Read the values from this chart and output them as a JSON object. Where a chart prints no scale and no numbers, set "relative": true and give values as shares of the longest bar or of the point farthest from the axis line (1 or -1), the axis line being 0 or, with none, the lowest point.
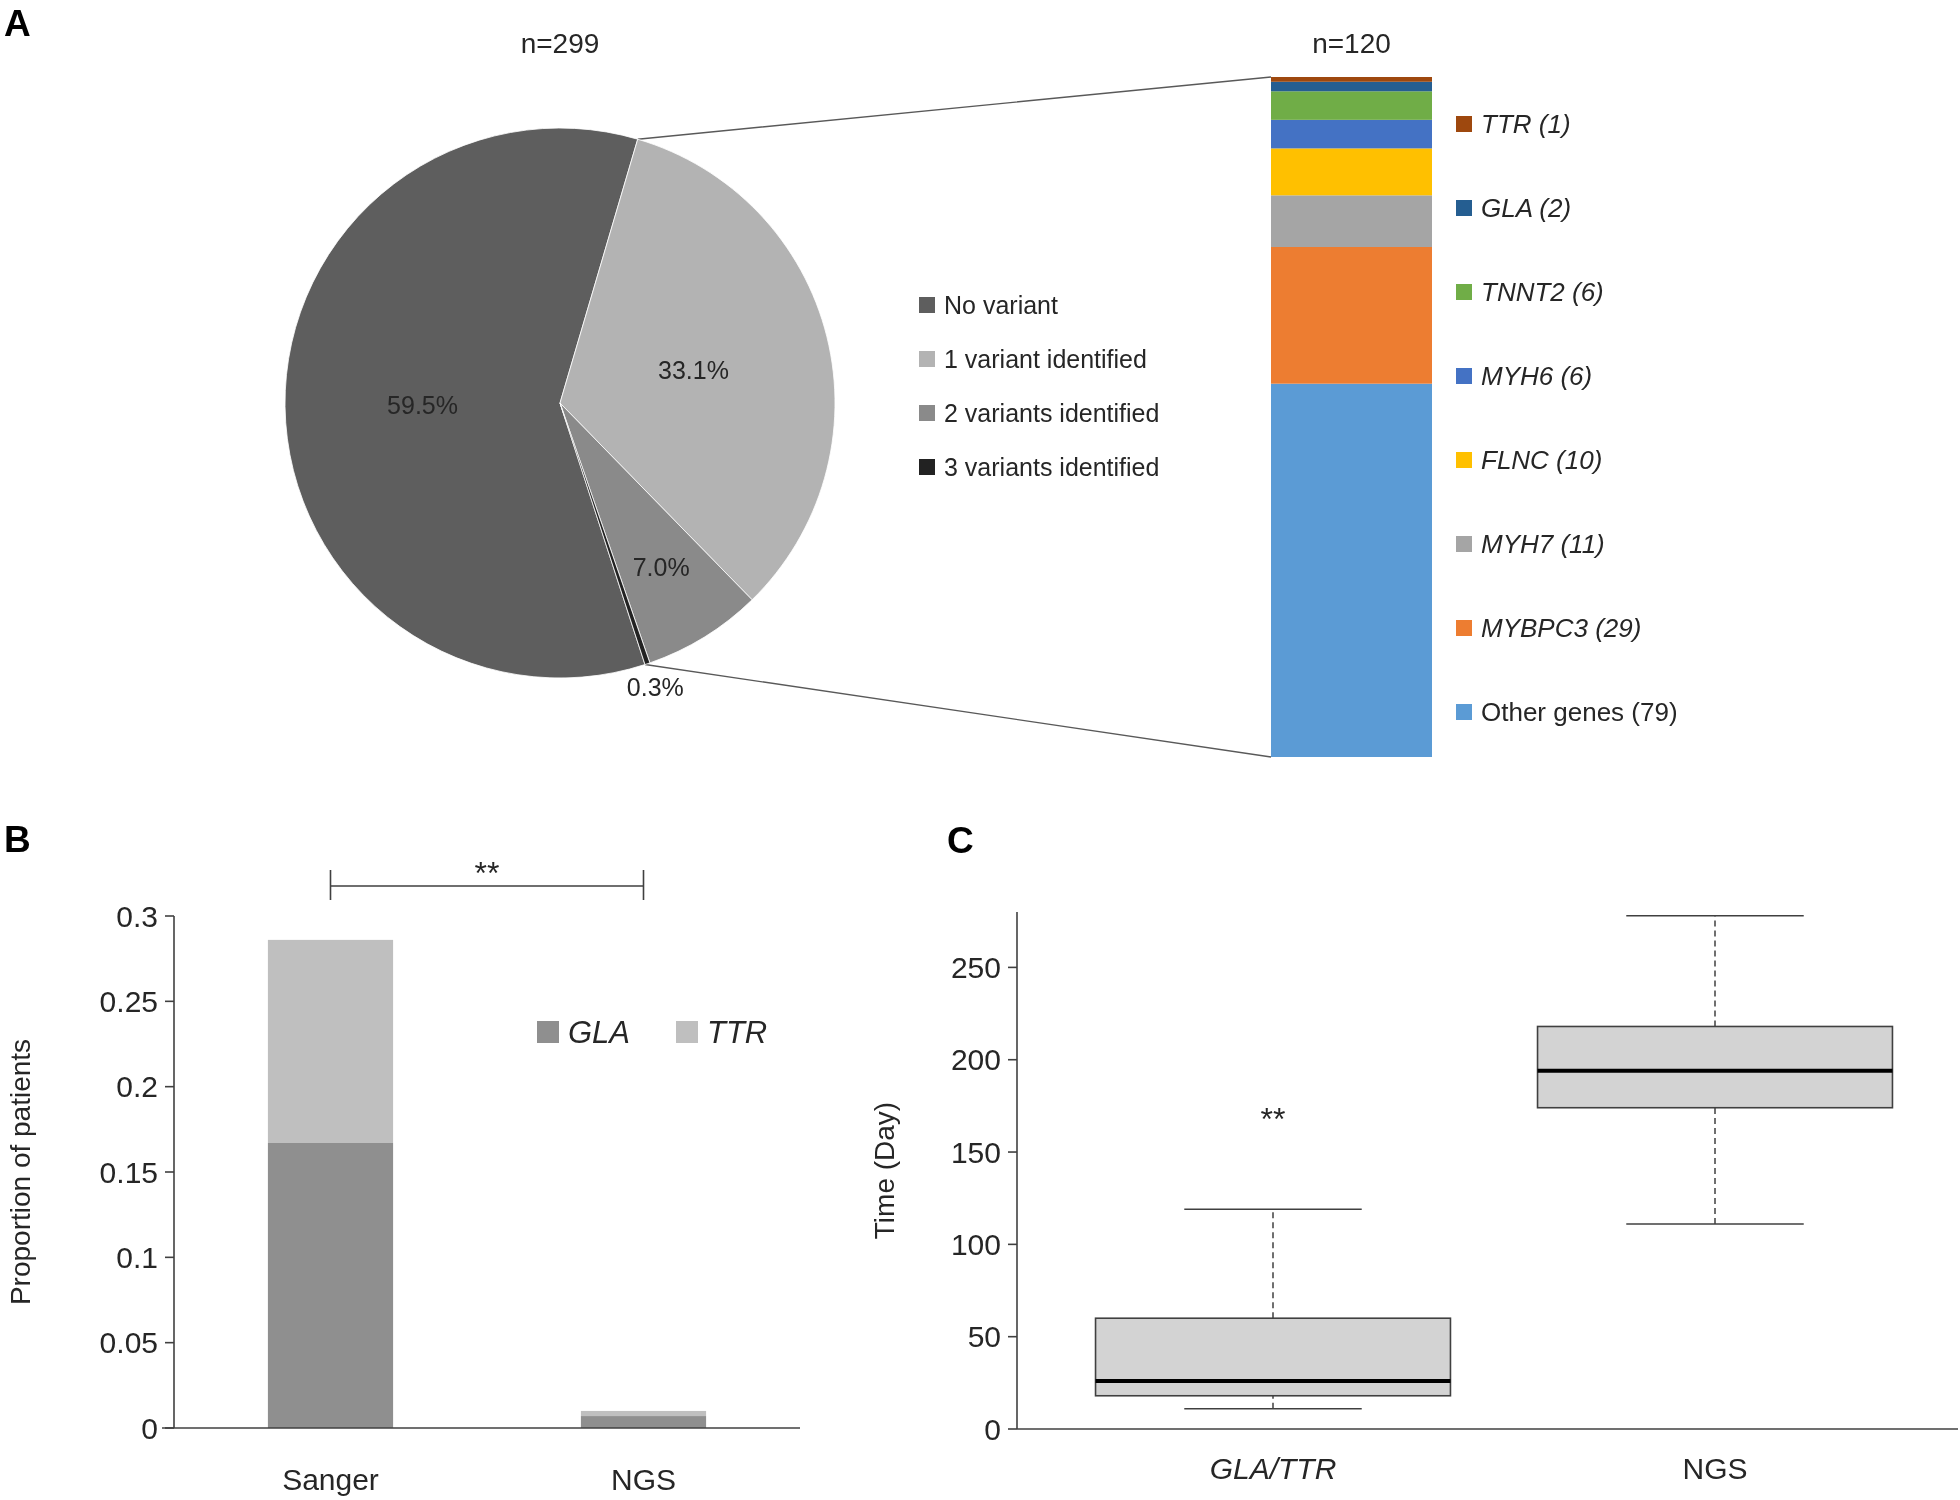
{
  "chart_data": [
    {
      "type": "pie",
      "title": "n=299",
      "categories": [
        "No variant",
        "1 variant identified",
        "2 variants identified",
        "3 variants identified"
      ],
      "values": [
        59.5,
        33.1,
        7.0,
        0.3
      ],
      "colors": [
        "#5e5e5e",
        "#b3b3b3",
        "#8a8a8a",
        "#222222"
      ],
      "value_labels": [
        "59.5%",
        "33.1%",
        "7.0%",
        "0.3%"
      ],
      "legend": "right",
      "annotations": [
        "A"
      ]
    },
    {
      "type": "bar",
      "title": "n=120",
      "stacked": true,
      "relative": true,
      "categories": [
        null
      ],
      "series": [
        {
          "name": "Other genes (79)",
          "color": "#5b9bd5",
          "values": [
            0.549
          ]
        },
        {
          "name": "MYBPC3 (29)",
          "color": "#ed7d31",
          "values": [
            0.201
          ]
        },
        {
          "name": "MYH7 (11)",
          "color": "#a5a5a5",
          "values": [
            0.076
          ]
        },
        {
          "name": "FLNC (10)",
          "color": "#ffc000",
          "values": [
            0.069
          ]
        },
        {
          "name": "MYH6 (6)",
          "color": "#4472c4",
          "values": [
            0.042
          ]
        },
        {
          "name": "TNNT2 (6)",
          "color": "#70ad47",
          "values": [
            0.042
          ]
        },
        {
          "name": "GLA (2)",
          "color": "#255e91",
          "values": [
            0.014
          ]
        },
        {
          "name": "TTR (1)",
          "color": "#9e480e",
          "values": [
            0.007
          ]
        }
      ],
      "legend": "right"
    },
    {
      "type": "bar",
      "stacked": true,
      "categories": [
        "Sanger",
        "NGS"
      ],
      "series": [
        {
          "name": "GLA",
          "color": "#8f8f8f",
          "values": [
            0.167,
            0.007
          ]
        },
        {
          "name": "TTR",
          "color": "#bfbfbf",
          "values": [
            0.119,
            0.003
          ]
        }
      ],
      "ylim": [
        0,
        0.3
      ],
      "yticks": [
        0,
        0.05,
        0.1,
        0.15,
        0.2,
        0.25,
        0.3
      ],
      "ylabel": "Proportion of patients",
      "legend": "top right",
      "annotations": [
        "B",
        "**"
      ]
    },
    {
      "type": "box",
      "categories": [
        "GLA/TTR",
        "NGS"
      ],
      "series": [
        {
          "color": "#d3d3d3",
          "boxes": [
            {
              "low": 11,
              "q1": 18,
              "median": 26,
              "q3": 60,
              "high": 119
            },
            {
              "low": 111,
              "q1": 174,
              "median": 194,
              "q3": 218,
              "high": 278
            }
          ]
        }
      ],
      "ylim": [
        0,
        280
      ],
      "yticks": [
        0,
        50,
        100,
        150,
        200,
        250
      ],
      "ylabel": "Time (Day)",
      "annotations": [
        "C",
        "**"
      ]
    }
  ]
}
